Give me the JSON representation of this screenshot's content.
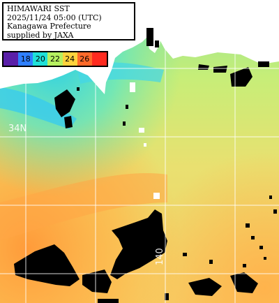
{
  "info": {
    "line1": "HIMAWARI SST",
    "line2": "2025/11/24 05:00 (UTC)",
    "line3": "Kanagawa Prefecture",
    "line4": "supplied by JAXA"
  },
  "legend": {
    "items": [
      {
        "label": "",
        "color": "#5a1fa8"
      },
      {
        "label": "18",
        "color": "#2f7fff"
      },
      {
        "label": "20",
        "color": "#1fe0d8"
      },
      {
        "label": "22",
        "color": "#b6f060"
      },
      {
        "label": "24",
        "color": "#ffd23c"
      },
      {
        "label": "26",
        "color": "#ff6a2a"
      },
      {
        "label": "",
        "color": "#ff2a1f"
      }
    ]
  },
  "grid": {
    "lat_label": "34N",
    "lon_label": "140"
  },
  "colors": {
    "land": "#ffffff",
    "cloud": "#000000",
    "warm": "#ff9a3c",
    "cool": "#3fe0c8"
  }
}
